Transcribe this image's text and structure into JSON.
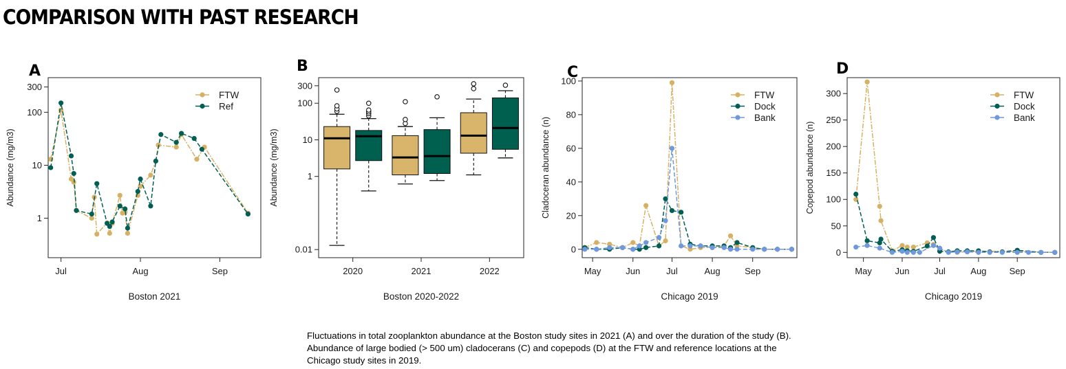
{
  "page": {
    "title": "COMPARISON WITH PAST RESEARCH",
    "caption": "Fluctuations in total zooplankton abundance at the Boston study sites in 2021 (A) and over the duration of the study (B). Abundance of large bodied (> 500 um) cladocerans (C) and copepods (D) at the FTW and reference locations at the Chicago study sites in 2019."
  },
  "colors": {
    "ftw": "#d6b164",
    "ref": "#005f52",
    "bank": "#6f98dd",
    "box_ftw": "#d9b56b",
    "box_ref": "#00604f"
  },
  "chart_data": [
    {
      "id": "A",
      "type": "line",
      "panel_label": "A",
      "subtitle": "Boston 2021",
      "xlabel": "",
      "ylabel": "Abundance (mg/m3)",
      "yscale": "log",
      "ylim": [
        0.18,
        450
      ],
      "yticks": [
        1,
        10,
        100,
        300
      ],
      "ytick_labels": [
        "1",
        "10",
        "100",
        "300"
      ],
      "xlim": [
        "2021-06-26",
        "2021-09-17"
      ],
      "xticks": [
        "2021-07-01",
        "2021-08-01",
        "2021-09-01"
      ],
      "xtick_labels": [
        "Jul",
        "Aug",
        "Sep"
      ],
      "legend": "top-right",
      "series": [
        {
          "name": "FTW",
          "color": "#d6b164",
          "points": [
            [
              "2021-06-27",
              13
            ],
            [
              "2021-07-01",
              110
            ],
            [
              "2021-07-05",
              5.5
            ],
            [
              "2021-07-06",
              4.8
            ],
            [
              "2021-07-07",
              1.4
            ],
            [
              "2021-07-13",
              1.0
            ],
            [
              "2021-07-14",
              2.5
            ],
            [
              "2021-07-15",
              0.5
            ],
            [
              "2021-07-19",
              0.82
            ],
            [
              "2021-07-20",
              0.52
            ],
            [
              "2021-07-21",
              0.8
            ],
            [
              "2021-07-24",
              2.7
            ],
            [
              "2021-07-25",
              1.25
            ],
            [
              "2021-07-26",
              1.3
            ],
            [
              "2021-07-27",
              0.52
            ],
            [
              "2021-07-31",
              2.7
            ],
            [
              "2021-08-01",
              4.0
            ],
            [
              "2021-08-05",
              6.5
            ],
            [
              "2021-08-07",
              12
            ],
            [
              "2021-08-08",
              24
            ],
            [
              "2021-08-15",
              22
            ],
            [
              "2021-08-17",
              38
            ],
            [
              "2021-08-23",
              13
            ],
            [
              "2021-08-26",
              22
            ],
            [
              "2021-09-12",
              1.25
            ]
          ]
        },
        {
          "name": "Ref",
          "color": "#005f52",
          "points": [
            [
              "2021-06-27",
              9
            ],
            [
              "2021-07-01",
              150
            ],
            [
              "2021-07-05",
              15
            ],
            [
              "2021-07-06",
              7
            ],
            [
              "2021-07-07",
              1.4
            ],
            [
              "2021-07-13",
              1.2
            ],
            [
              "2021-07-15",
              4.5
            ],
            [
              "2021-07-19",
              0.8
            ],
            [
              "2021-07-20",
              0.7
            ],
            [
              "2021-07-21",
              0.85
            ],
            [
              "2021-07-24",
              1.7
            ],
            [
              "2021-07-26",
              1.5
            ],
            [
              "2021-07-27",
              0.65
            ],
            [
              "2021-07-31",
              3.2
            ],
            [
              "2021-08-01",
              5.5
            ],
            [
              "2021-08-05",
              1.7
            ],
            [
              "2021-08-07",
              12
            ],
            [
              "2021-08-09",
              38
            ],
            [
              "2021-08-15",
              27
            ],
            [
              "2021-08-17",
              40
            ],
            [
              "2021-08-22",
              32
            ],
            [
              "2021-08-25",
              20
            ],
            [
              "2021-09-12",
              1.2
            ]
          ]
        }
      ]
    },
    {
      "id": "B",
      "type": "box",
      "panel_label": "B",
      "subtitle": "Boston 2020-2022",
      "xlabel": "",
      "ylabel": "Abundance (mg/m3)",
      "yscale": "log",
      "ylim": [
        0.006,
        500
      ],
      "yticks": [
        0.01,
        1,
        10,
        100,
        300
      ],
      "ytick_labels": [
        "0.01",
        "1",
        "10",
        "100",
        "300"
      ],
      "categories": [
        "2020",
        "2021",
        "2022"
      ],
      "boxes": [
        {
          "category": "2020",
          "group": "FTW",
          "color": "#d9b56b",
          "whisker_low": 0.013,
          "q1": 1.6,
          "median": 11,
          "q3": 23,
          "whisker_high": 50,
          "outliers": [
            60,
            70,
            85,
            230
          ]
        },
        {
          "category": "2020",
          "group": "Ref",
          "color": "#00604f",
          "whisker_low": 0.4,
          "q1": 2.7,
          "median": 12.5,
          "q3": 18,
          "whisker_high": 38,
          "outliers": [
            45,
            52,
            58,
            65,
            100
          ]
        },
        {
          "category": "2021",
          "group": "FTW",
          "color": "#d9b56b",
          "whisker_low": 0.62,
          "q1": 1.1,
          "median": 3.3,
          "q3": 13,
          "whisker_high": 23,
          "outliers": [
            28,
            36,
            110
          ]
        },
        {
          "category": "2021",
          "group": "Ref",
          "color": "#00604f",
          "whisker_low": 0.77,
          "q1": 1.2,
          "median": 3.6,
          "q3": 19,
          "whisker_high": 40,
          "outliers": [
            150
          ]
        },
        {
          "category": "2022",
          "group": "FTW",
          "color": "#d9b56b",
          "whisker_low": 1.1,
          "q1": 4.3,
          "median": 13,
          "q3": 55,
          "whisker_high": 130,
          "outliers": [
            250,
            340
          ]
        },
        {
          "category": "2022",
          "group": "Ref",
          "color": "#00604f",
          "whisker_low": 3.2,
          "q1": 5.5,
          "median": 21,
          "q3": 140,
          "whisker_high": 220,
          "outliers": [
            310
          ]
        }
      ]
    },
    {
      "id": "C",
      "type": "line",
      "panel_label": "C",
      "subtitle": "Chicago 2019",
      "xlabel": "",
      "ylabel": "Cladoceran abundance (n)",
      "yscale": "linear",
      "ylim": [
        -5,
        102
      ],
      "yticks": [
        0,
        20,
        40,
        60,
        80,
        100
      ],
      "ytick_labels": [
        "0",
        "20",
        "40",
        "60",
        "80",
        "100"
      ],
      "xlim": [
        "2019-04-23",
        "2019-10-05"
      ],
      "xticks": [
        "2019-05-01",
        "2019-06-01",
        "2019-07-01",
        "2019-08-01",
        "2019-09-01"
      ],
      "xtick_labels": [
        "May",
        "Jun",
        "Jul",
        "Aug",
        "Sep"
      ],
      "legend": "top-right",
      "series": [
        {
          "name": "FTW",
          "color": "#d6b164",
          "points": [
            [
              "2019-04-25",
              1
            ],
            [
              "2019-05-04",
              4
            ],
            [
              "2019-05-14",
              3
            ],
            [
              "2019-05-24",
              1
            ],
            [
              "2019-06-01",
              4
            ],
            [
              "2019-06-06",
              2
            ],
            [
              "2019-06-11",
              26
            ],
            [
              "2019-06-21",
              2
            ],
            [
              "2019-06-26",
              5
            ],
            [
              "2019-07-01",
              99
            ],
            [
              "2019-07-08",
              2
            ],
            [
              "2019-07-15",
              0
            ],
            [
              "2019-07-23",
              1
            ],
            [
              "2019-08-01",
              1
            ],
            [
              "2019-08-10",
              2
            ],
            [
              "2019-08-15",
              8
            ],
            [
              "2019-08-20",
              2
            ],
            [
              "2019-09-01",
              1
            ],
            [
              "2019-09-10",
              0
            ],
            [
              "2019-09-20",
              0
            ],
            [
              "2019-10-01",
              0
            ]
          ]
        },
        {
          "name": "Dock",
          "color": "#005f52",
          "points": [
            [
              "2019-04-25",
              1
            ],
            [
              "2019-05-04",
              0
            ],
            [
              "2019-05-14",
              0
            ],
            [
              "2019-05-24",
              1
            ],
            [
              "2019-06-01",
              0
            ],
            [
              "2019-06-06",
              0
            ],
            [
              "2019-06-11",
              1
            ],
            [
              "2019-06-21",
              2
            ],
            [
              "2019-06-26",
              30
            ],
            [
              "2019-07-01",
              23
            ],
            [
              "2019-07-08",
              22
            ],
            [
              "2019-07-15",
              3
            ],
            [
              "2019-07-23",
              2
            ],
            [
              "2019-08-01",
              2
            ],
            [
              "2019-08-10",
              2
            ],
            [
              "2019-08-15",
              1
            ],
            [
              "2019-08-20",
              4
            ],
            [
              "2019-09-01",
              1
            ],
            [
              "2019-09-10",
              0
            ],
            [
              "2019-09-20",
              0
            ],
            [
              "2019-10-01",
              0
            ]
          ]
        },
        {
          "name": "Bank",
          "color": "#6f98dd",
          "points": [
            [
              "2019-04-25",
              0
            ],
            [
              "2019-05-04",
              0
            ],
            [
              "2019-05-14",
              1
            ],
            [
              "2019-05-24",
              1
            ],
            [
              "2019-06-01",
              0
            ],
            [
              "2019-06-06",
              2
            ],
            [
              "2019-06-11",
              4
            ],
            [
              "2019-06-21",
              7
            ],
            [
              "2019-06-26",
              17
            ],
            [
              "2019-07-01",
              60
            ],
            [
              "2019-07-08",
              2
            ],
            [
              "2019-07-15",
              2
            ],
            [
              "2019-07-23",
              2
            ],
            [
              "2019-08-01",
              1
            ],
            [
              "2019-08-10",
              1
            ],
            [
              "2019-08-15",
              0
            ],
            [
              "2019-08-20",
              0
            ],
            [
              "2019-09-01",
              0
            ],
            [
              "2019-09-10",
              0
            ],
            [
              "2019-09-20",
              0
            ],
            [
              "2019-10-01",
              0
            ]
          ]
        }
      ]
    },
    {
      "id": "D",
      "type": "line",
      "panel_label": "D",
      "subtitle": "Chicago 2019",
      "xlabel": "",
      "ylabel": "Copepod abundance (n)",
      "yscale": "linear",
      "ylim": [
        -10,
        330
      ],
      "yticks": [
        0,
        50,
        100,
        150,
        200,
        250,
        300
      ],
      "ytick_labels": [
        "0",
        "50",
        "100",
        "150",
        "200",
        "250",
        "300"
      ],
      "xlim": [
        "2019-04-18",
        "2019-10-05"
      ],
      "xticks": [
        "2019-05-01",
        "2019-06-01",
        "2019-07-01",
        "2019-08-01",
        "2019-09-01"
      ],
      "xtick_labels": [
        "May",
        "Jun",
        "Jul",
        "Aug",
        "Sep"
      ],
      "legend": "top-right",
      "series": [
        {
          "name": "FTW",
          "color": "#d6b164",
          "points": [
            [
              "2019-04-25",
              100
            ],
            [
              "2019-05-04",
              322
            ],
            [
              "2019-05-14",
              87
            ],
            [
              "2019-05-15",
              60
            ],
            [
              "2019-05-24",
              3
            ],
            [
              "2019-06-01",
              13
            ],
            [
              "2019-06-05",
              10
            ],
            [
              "2019-06-10",
              10
            ],
            [
              "2019-06-21",
              18
            ],
            [
              "2019-06-26",
              15
            ],
            [
              "2019-07-01",
              5
            ],
            [
              "2019-07-15",
              0
            ],
            [
              "2019-08-01",
              2
            ],
            [
              "2019-09-01",
              2
            ],
            [
              "2019-10-01",
              0
            ]
          ]
        },
        {
          "name": "Dock",
          "color": "#005f52",
          "points": [
            [
              "2019-04-25",
              110
            ],
            [
              "2019-05-04",
              22
            ],
            [
              "2019-05-14",
              18
            ],
            [
              "2019-05-15",
              25
            ],
            [
              "2019-05-24",
              2
            ],
            [
              "2019-06-01",
              5
            ],
            [
              "2019-06-05",
              3
            ],
            [
              "2019-06-10",
              2
            ],
            [
              "2019-06-21",
              12
            ],
            [
              "2019-06-26",
              28
            ],
            [
              "2019-07-01",
              2
            ],
            [
              "2019-07-08",
              1
            ],
            [
              "2019-07-15",
              3
            ],
            [
              "2019-07-23",
              3
            ],
            [
              "2019-08-01",
              3
            ],
            [
              "2019-08-10",
              1
            ],
            [
              "2019-08-20",
              1
            ],
            [
              "2019-09-01",
              4
            ],
            [
              "2019-09-20",
              0
            ],
            [
              "2019-10-01",
              0
            ]
          ]
        },
        {
          "name": "Bank",
          "color": "#6f98dd",
          "points": [
            [
              "2019-04-25",
              10
            ],
            [
              "2019-05-04",
              13
            ],
            [
              "2019-05-14",
              8
            ],
            [
              "2019-05-24",
              0
            ],
            [
              "2019-06-01",
              2
            ],
            [
              "2019-06-05",
              0
            ],
            [
              "2019-06-10",
              0
            ],
            [
              "2019-06-15",
              0
            ],
            [
              "2019-06-26",
              13
            ],
            [
              "2019-07-01",
              8
            ],
            [
              "2019-07-08",
              0
            ],
            [
              "2019-07-15",
              1
            ],
            [
              "2019-07-23",
              1
            ],
            [
              "2019-08-01",
              0
            ],
            [
              "2019-08-10",
              0
            ],
            [
              "2019-08-20",
              0
            ],
            [
              "2019-09-01",
              0
            ],
            [
              "2019-09-10",
              0
            ],
            [
              "2019-09-20",
              0
            ],
            [
              "2019-10-01",
              0
            ]
          ]
        }
      ]
    }
  ]
}
